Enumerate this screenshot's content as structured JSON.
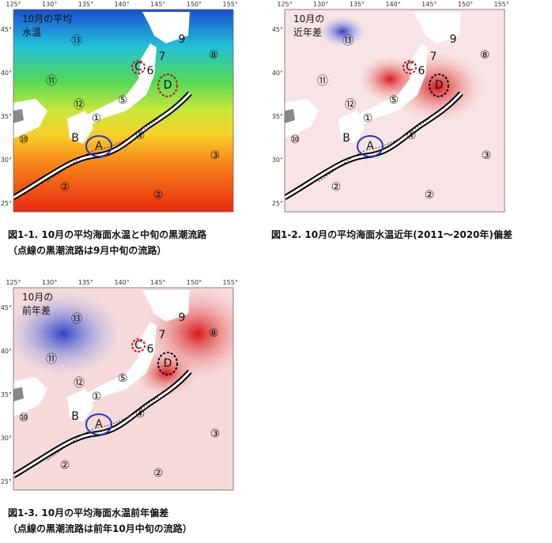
{
  "axes": {
    "lon_labels": [
      "125°",
      "130°",
      "135°",
      "140°",
      "145°",
      "150°",
      "155°"
    ],
    "lat_labels": [
      "45°",
      "40°",
      "35°",
      "30°",
      "25°"
    ]
  },
  "region_labels": [
    "⑬",
    "⑪",
    "⑫",
    "①",
    "⑩",
    "B",
    "A",
    "④",
    "⑤",
    "③",
    "②",
    "②",
    "⑧",
    "9",
    "7",
    "6",
    "C",
    "D"
  ],
  "panels": [
    {
      "title": [
        "10月の平均",
        "水温"
      ],
      "caption": [
        "図1-1. 10月の平均海面水温と中旬の黒潮流路",
        "（点線の黒潮流路は9月中旬の流路）"
      ]
    },
    {
      "title": [
        "10月の",
        "近年差"
      ],
      "caption": [
        "図1-2. 10月の平均海面水温近年(2011～2020年)偏差"
      ]
    },
    {
      "title": [
        "10月の",
        "前年差"
      ],
      "caption": [
        "図1-3. 10月の平均海面水温前年偏差",
        "（点線の黒潮流路は前年10月中旬の流路）"
      ]
    }
  ]
}
